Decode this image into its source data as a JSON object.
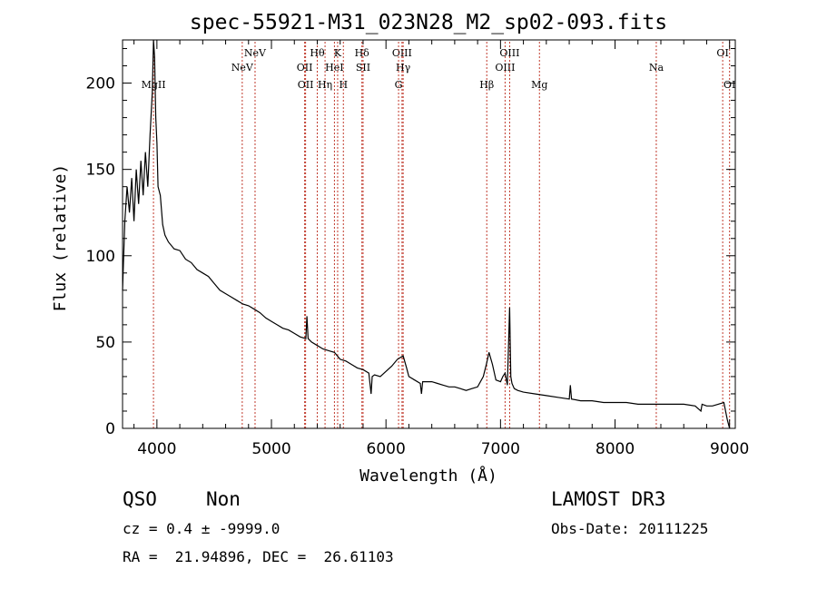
{
  "chart_data": {
    "type": "line",
    "title": "spec-55921-M31_023N28_M2_sp02-093.fits",
    "xlabel": "Wavelength (Å)",
    "ylabel": "Flux (relative)",
    "xlim": [
      3700,
      9050
    ],
    "ylim": [
      0,
      225
    ],
    "xticks": [
      4000,
      5000,
      6000,
      7000,
      8000,
      9000
    ],
    "yticks": [
      0,
      50,
      100,
      150,
      200
    ],
    "x": [
      3700,
      3720,
      3740,
      3760,
      3780,
      3800,
      3820,
      3840,
      3860,
      3880,
      3900,
      3920,
      3940,
      3960,
      3970,
      3980,
      3990,
      4000,
      4010,
      4030,
      4050,
      4070,
      4100,
      4150,
      4200,
      4250,
      4300,
      4350,
      4400,
      4450,
      4500,
      4550,
      4600,
      4650,
      4700,
      4750,
      4800,
      4850,
      4900,
      4950,
      5000,
      5050,
      5100,
      5150,
      5200,
      5250,
      5300,
      5310,
      5320,
      5350,
      5400,
      5450,
      5500,
      5550,
      5600,
      5650,
      5700,
      5750,
      5800,
      5850,
      5870,
      5880,
      5900,
      5950,
      6000,
      6050,
      6100,
      6150,
      6180,
      6200,
      6250,
      6300,
      6310,
      6320,
      6350,
      6400,
      6450,
      6500,
      6550,
      6600,
      6650,
      6700,
      6750,
      6800,
      6850,
      6880,
      6900,
      6930,
      6960,
      7000,
      7020,
      7040,
      7060,
      7080,
      7090,
      7100,
      7120,
      7150,
      7200,
      7300,
      7400,
      7500,
      7600,
      7610,
      7620,
      7700,
      7800,
      7900,
      8000,
      8100,
      8200,
      8300,
      8400,
      8500,
      8600,
      8700,
      8750,
      8760,
      8800,
      8850,
      8900,
      8950,
      8980,
      9000
    ],
    "y": [
      80,
      120,
      140,
      125,
      145,
      120,
      150,
      130,
      155,
      135,
      160,
      140,
      170,
      195,
      225,
      215,
      180,
      165,
      140,
      135,
      118,
      112,
      108,
      104,
      103,
      98,
      96,
      92,
      90,
      88,
      84,
      80,
      78,
      76,
      74,
      72,
      71,
      69,
      67,
      64,
      62,
      60,
      58,
      57,
      55,
      53,
      52,
      65,
      52,
      50,
      48,
      46,
      45,
      44,
      40,
      39,
      37,
      35,
      34,
      32,
      20,
      30,
      31,
      30,
      33,
      36,
      40,
      42,
      35,
      30,
      28,
      26,
      20,
      27,
      27,
      27,
      26,
      25,
      24,
      24,
      23,
      22,
      23,
      24,
      30,
      38,
      44,
      37,
      28,
      27,
      30,
      32,
      25,
      70,
      30,
      26,
      23,
      22,
      21,
      20,
      19,
      18,
      17,
      25,
      17,
      16,
      16,
      15,
      15,
      15,
      14,
      14,
      14,
      14,
      14,
      13,
      10,
      14,
      13,
      13,
      14,
      15,
      5,
      0
    ],
    "lines": [
      {
        "name": "MgII",
        "x": 3970,
        "row": 3
      },
      {
        "name": "NeV",
        "x": 4745,
        "row": 2
      },
      {
        "name": "NeV",
        "x": 4857,
        "row": 1
      },
      {
        "name": "OII",
        "x": 5290,
        "row": 2
      },
      {
        "name": "OII",
        "x": 5298,
        "row": 3
      },
      {
        "name": "Hθ",
        "x": 5400,
        "row": 1
      },
      {
        "name": "Hη",
        "x": 5468,
        "row": 3
      },
      {
        "name": "HeI",
        "x": 5550,
        "row": 2
      },
      {
        "name": "K",
        "x": 5578,
        "row": 1
      },
      {
        "name": "H",
        "x": 5628,
        "row": 3
      },
      {
        "name": "Hδ",
        "x": 5790,
        "row": 1
      },
      {
        "name": "SII",
        "x": 5800,
        "row": 2
      },
      {
        "name": "OIII",
        "x": 6140,
        "row": 1
      },
      {
        "name": "Hγ",
        "x": 6150,
        "row": 2
      },
      {
        "name": "G",
        "x": 6110,
        "row": 3
      },
      {
        "name": "Hβ",
        "x": 6880,
        "row": 3
      },
      {
        "name": "OIII",
        "x": 7040,
        "row": 2
      },
      {
        "name": "OIII",
        "x": 7080,
        "row": 1
      },
      {
        "name": "Mg",
        "x": 7340,
        "row": 3
      },
      {
        "name": "Na",
        "x": 8360,
        "row": 2
      },
      {
        "name": "OI",
        "x": 8940,
        "row": 1
      },
      {
        "name": "OI",
        "x": 9000,
        "row": 3
      }
    ]
  },
  "info": {
    "object_class": "QSO",
    "subclass": "Non",
    "survey": "LAMOST DR3",
    "cz": "cz = 0.4 ± -9999.0",
    "obs_date": "Obs-Date: 20111225",
    "coords": "RA =  21.94896, DEC =  26.61103"
  },
  "colors": {
    "spectrum": "#000000",
    "line_marker": "#c0392b",
    "axis": "#000000"
  }
}
